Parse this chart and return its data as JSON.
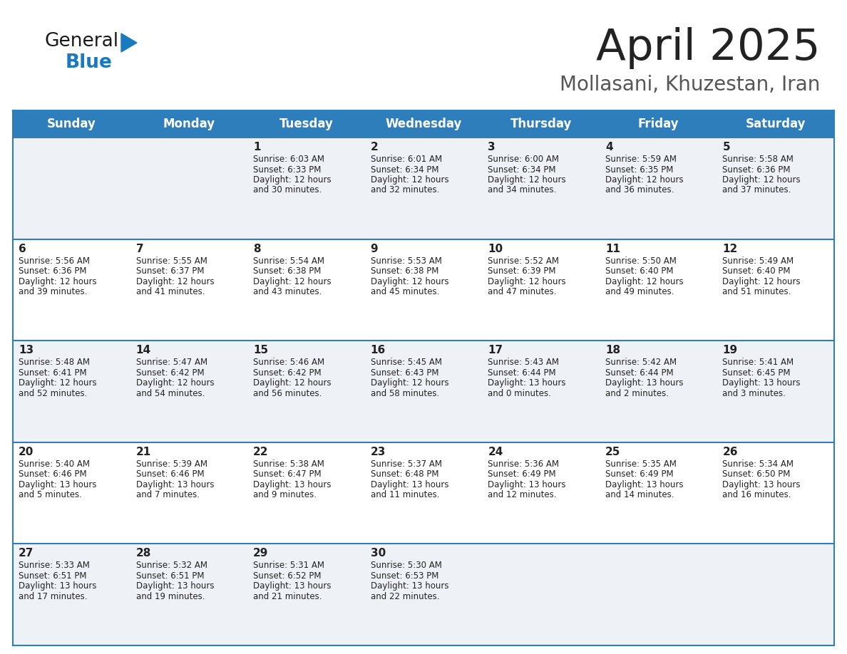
{
  "title": "April 2025",
  "subtitle": "Mollasani, Khuzestan, Iran",
  "days_of_week": [
    "Sunday",
    "Monday",
    "Tuesday",
    "Wednesday",
    "Thursday",
    "Friday",
    "Saturday"
  ],
  "header_bg": "#2e7ebb",
  "header_text": "#ffffff",
  "row_bg_even": "#eef2f7",
  "row_bg_odd": "#ffffff",
  "border_color": "#2e7ebb",
  "title_color": "#222222",
  "subtitle_color": "#555555",
  "cell_text_color": "#222222",
  "logo_color_general": "#1a1a1a",
  "logo_color_blue": "#1a7abf",
  "calendar": [
    [
      {
        "day": "",
        "sunrise": "",
        "sunset": "",
        "daylight_h": "",
        "daylight_m": ""
      },
      {
        "day": "",
        "sunrise": "",
        "sunset": "",
        "daylight_h": "",
        "daylight_m": ""
      },
      {
        "day": "1",
        "sunrise": "6:03 AM",
        "sunset": "6:33 PM",
        "daylight_h": "12 hours",
        "daylight_m": "and 30 minutes."
      },
      {
        "day": "2",
        "sunrise": "6:01 AM",
        "sunset": "6:34 PM",
        "daylight_h": "12 hours",
        "daylight_m": "and 32 minutes."
      },
      {
        "day": "3",
        "sunrise": "6:00 AM",
        "sunset": "6:34 PM",
        "daylight_h": "12 hours",
        "daylight_m": "and 34 minutes."
      },
      {
        "day": "4",
        "sunrise": "5:59 AM",
        "sunset": "6:35 PM",
        "daylight_h": "12 hours",
        "daylight_m": "and 36 minutes."
      },
      {
        "day": "5",
        "sunrise": "5:58 AM",
        "sunset": "6:36 PM",
        "daylight_h": "12 hours",
        "daylight_m": "and 37 minutes."
      }
    ],
    [
      {
        "day": "6",
        "sunrise": "5:56 AM",
        "sunset": "6:36 PM",
        "daylight_h": "12 hours",
        "daylight_m": "and 39 minutes."
      },
      {
        "day": "7",
        "sunrise": "5:55 AM",
        "sunset": "6:37 PM",
        "daylight_h": "12 hours",
        "daylight_m": "and 41 minutes."
      },
      {
        "day": "8",
        "sunrise": "5:54 AM",
        "sunset": "6:38 PM",
        "daylight_h": "12 hours",
        "daylight_m": "and 43 minutes."
      },
      {
        "day": "9",
        "sunrise": "5:53 AM",
        "sunset": "6:38 PM",
        "daylight_h": "12 hours",
        "daylight_m": "and 45 minutes."
      },
      {
        "day": "10",
        "sunrise": "5:52 AM",
        "sunset": "6:39 PM",
        "daylight_h": "12 hours",
        "daylight_m": "and 47 minutes."
      },
      {
        "day": "11",
        "sunrise": "5:50 AM",
        "sunset": "6:40 PM",
        "daylight_h": "12 hours",
        "daylight_m": "and 49 minutes."
      },
      {
        "day": "12",
        "sunrise": "5:49 AM",
        "sunset": "6:40 PM",
        "daylight_h": "12 hours",
        "daylight_m": "and 51 minutes."
      }
    ],
    [
      {
        "day": "13",
        "sunrise": "5:48 AM",
        "sunset": "6:41 PM",
        "daylight_h": "12 hours",
        "daylight_m": "and 52 minutes."
      },
      {
        "day": "14",
        "sunrise": "5:47 AM",
        "sunset": "6:42 PM",
        "daylight_h": "12 hours",
        "daylight_m": "and 54 minutes."
      },
      {
        "day": "15",
        "sunrise": "5:46 AM",
        "sunset": "6:42 PM",
        "daylight_h": "12 hours",
        "daylight_m": "and 56 minutes."
      },
      {
        "day": "16",
        "sunrise": "5:45 AM",
        "sunset": "6:43 PM",
        "daylight_h": "12 hours",
        "daylight_m": "and 58 minutes."
      },
      {
        "day": "17",
        "sunrise": "5:43 AM",
        "sunset": "6:44 PM",
        "daylight_h": "13 hours",
        "daylight_m": "and 0 minutes."
      },
      {
        "day": "18",
        "sunrise": "5:42 AM",
        "sunset": "6:44 PM",
        "daylight_h": "13 hours",
        "daylight_m": "and 2 minutes."
      },
      {
        "day": "19",
        "sunrise": "5:41 AM",
        "sunset": "6:45 PM",
        "daylight_h": "13 hours",
        "daylight_m": "and 3 minutes."
      }
    ],
    [
      {
        "day": "20",
        "sunrise": "5:40 AM",
        "sunset": "6:46 PM",
        "daylight_h": "13 hours",
        "daylight_m": "and 5 minutes."
      },
      {
        "day": "21",
        "sunrise": "5:39 AM",
        "sunset": "6:46 PM",
        "daylight_h": "13 hours",
        "daylight_m": "and 7 minutes."
      },
      {
        "day": "22",
        "sunrise": "5:38 AM",
        "sunset": "6:47 PM",
        "daylight_h": "13 hours",
        "daylight_m": "and 9 minutes."
      },
      {
        "day": "23",
        "sunrise": "5:37 AM",
        "sunset": "6:48 PM",
        "daylight_h": "13 hours",
        "daylight_m": "and 11 minutes."
      },
      {
        "day": "24",
        "sunrise": "5:36 AM",
        "sunset": "6:49 PM",
        "daylight_h": "13 hours",
        "daylight_m": "and 12 minutes."
      },
      {
        "day": "25",
        "sunrise": "5:35 AM",
        "sunset": "6:49 PM",
        "daylight_h": "13 hours",
        "daylight_m": "and 14 minutes."
      },
      {
        "day": "26",
        "sunrise": "5:34 AM",
        "sunset": "6:50 PM",
        "daylight_h": "13 hours",
        "daylight_m": "and 16 minutes."
      }
    ],
    [
      {
        "day": "27",
        "sunrise": "5:33 AM",
        "sunset": "6:51 PM",
        "daylight_h": "13 hours",
        "daylight_m": "and 17 minutes."
      },
      {
        "day": "28",
        "sunrise": "5:32 AM",
        "sunset": "6:51 PM",
        "daylight_h": "13 hours",
        "daylight_m": "and 19 minutes."
      },
      {
        "day": "29",
        "sunrise": "5:31 AM",
        "sunset": "6:52 PM",
        "daylight_h": "13 hours",
        "daylight_m": "and 21 minutes."
      },
      {
        "day": "30",
        "sunrise": "5:30 AM",
        "sunset": "6:53 PM",
        "daylight_h": "13 hours",
        "daylight_m": "and 22 minutes."
      },
      {
        "day": "",
        "sunrise": "",
        "sunset": "",
        "daylight_h": "",
        "daylight_m": ""
      },
      {
        "day": "",
        "sunrise": "",
        "sunset": "",
        "daylight_h": "",
        "daylight_m": ""
      },
      {
        "day": "",
        "sunrise": "",
        "sunset": "",
        "daylight_h": "",
        "daylight_m": ""
      }
    ]
  ]
}
